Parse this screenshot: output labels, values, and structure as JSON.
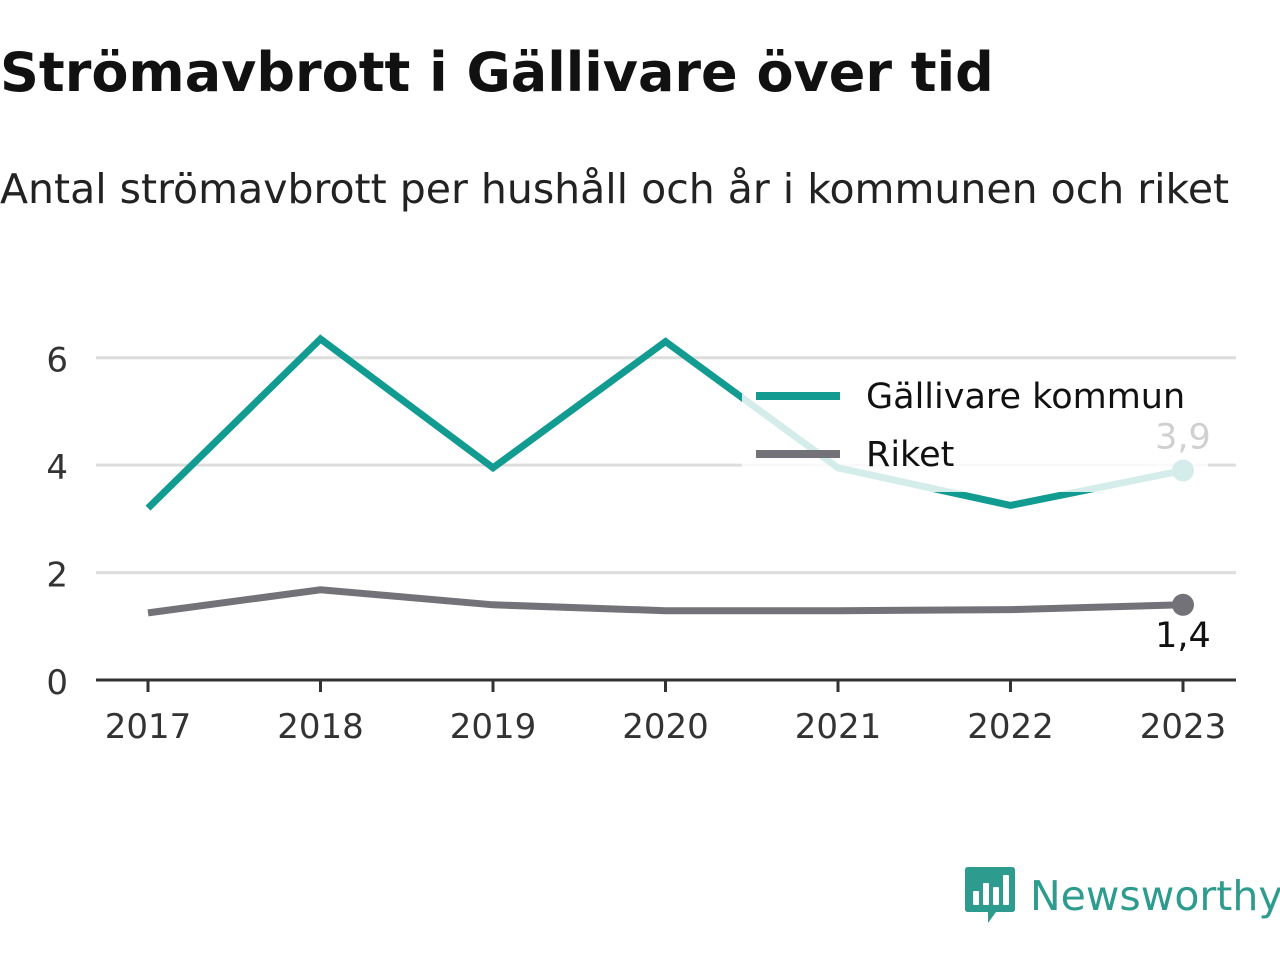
{
  "header": {
    "title": "Strömavbrott i Gällivare över tid",
    "subtitle": "Antal strömavbrott per hushåll och år i kommunen och riket"
  },
  "chart_data": {
    "type": "line",
    "title": "Strömavbrott i Gällivare över tid",
    "subtitle": "Antal strömavbrott per hushåll och år i kommunen och riket",
    "xlabel": "",
    "ylabel": "",
    "x": [
      "2017",
      "2018",
      "2019",
      "2020",
      "2021",
      "2022",
      "2023"
    ],
    "y_ticks": [
      "0",
      "2",
      "4",
      "6"
    ],
    "ylim": [
      0,
      7
    ],
    "grid": true,
    "legend_position": "top-right",
    "series": [
      {
        "name": "Gällivare kommun",
        "color": "#129b91",
        "values": [
          3.2,
          6.35,
          3.95,
          6.3,
          3.95,
          3.25,
          3.9
        ],
        "end_label": "3,9"
      },
      {
        "name": "Riket",
        "color": "#737278",
        "values": [
          1.25,
          1.68,
          1.4,
          1.29,
          1.29,
          1.31,
          1.4
        ],
        "end_label": "1,4"
      }
    ]
  },
  "brand": {
    "name": "Newsworthy",
    "color": "#2e9b8f",
    "icon": "newsworthy-logo-icon"
  }
}
